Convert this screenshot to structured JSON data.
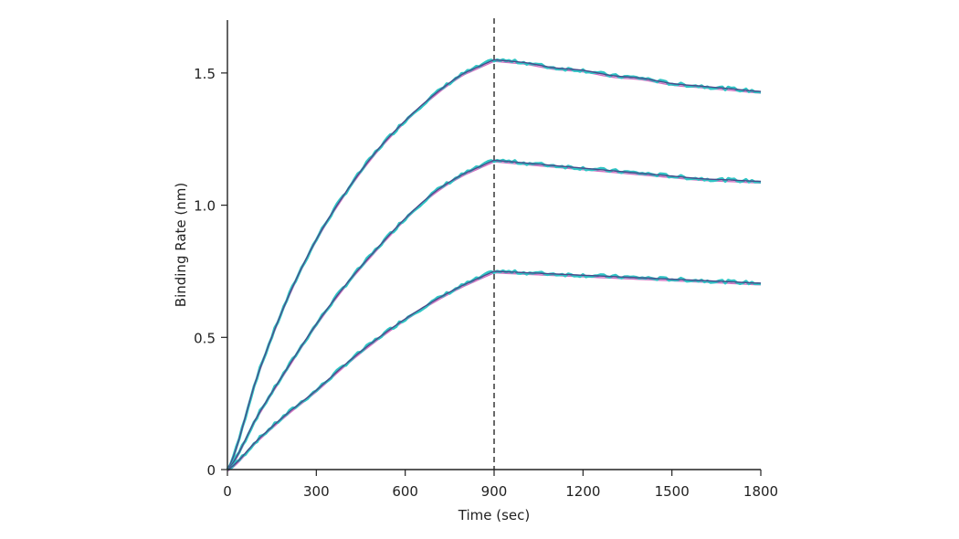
{
  "chart_data": {
    "type": "line",
    "title": "",
    "xlabel": "Time (sec)",
    "ylabel": "Binding Rate (nm)",
    "xlim": [
      0,
      1800
    ],
    "ylim": [
      0,
      1.7
    ],
    "x_ticks": [
      0,
      300,
      600,
      900,
      1200,
      1500,
      1800
    ],
    "x_tick_labels": [
      "0",
      "300",
      "600",
      "900",
      "1200",
      "1500",
      "1800"
    ],
    "y_ticks": [
      0,
      0.5,
      1.0,
      1.5
    ],
    "y_tick_labels": [
      "0",
      "0.5",
      "1.0",
      "1.5"
    ],
    "grid": false,
    "vertical_marker_x": 900,
    "colors": {
      "measured": "#2ec4c4",
      "fit_dark": "#4a4a8a",
      "fit_pink": "#d070c0",
      "axis": "#222222",
      "marker": "#444444"
    },
    "series": [
      {
        "x": [
          0,
          100,
          200,
          300,
          400,
          500,
          600,
          700,
          800,
          900,
          1000,
          1100,
          1200,
          1300,
          1400,
          1500,
          1600,
          1700,
          1800
        ],
        "values": [
          0,
          0.35,
          0.64,
          0.87,
          1.05,
          1.2,
          1.32,
          1.42,
          1.5,
          1.55,
          1.54,
          1.52,
          1.51,
          1.49,
          1.48,
          1.46,
          1.45,
          1.44,
          1.43
        ]
      },
      {
        "x": [
          0,
          100,
          200,
          300,
          400,
          500,
          600,
          700,
          800,
          900,
          1000,
          1100,
          1200,
          1300,
          1400,
          1500,
          1600,
          1700,
          1800
        ],
        "values": [
          0,
          0.2,
          0.38,
          0.55,
          0.7,
          0.83,
          0.95,
          1.05,
          1.12,
          1.17,
          1.16,
          1.15,
          1.14,
          1.13,
          1.12,
          1.11,
          1.1,
          1.095,
          1.09
        ]
      },
      {
        "x": [
          0,
          100,
          200,
          300,
          400,
          500,
          600,
          700,
          800,
          900,
          1000,
          1100,
          1200,
          1300,
          1400,
          1500,
          1600,
          1700,
          1800
        ],
        "values": [
          0,
          0.11,
          0.21,
          0.3,
          0.4,
          0.49,
          0.57,
          0.64,
          0.7,
          0.75,
          0.745,
          0.74,
          0.735,
          0.73,
          0.725,
          0.72,
          0.715,
          0.71,
          0.705
        ]
      }
    ]
  }
}
